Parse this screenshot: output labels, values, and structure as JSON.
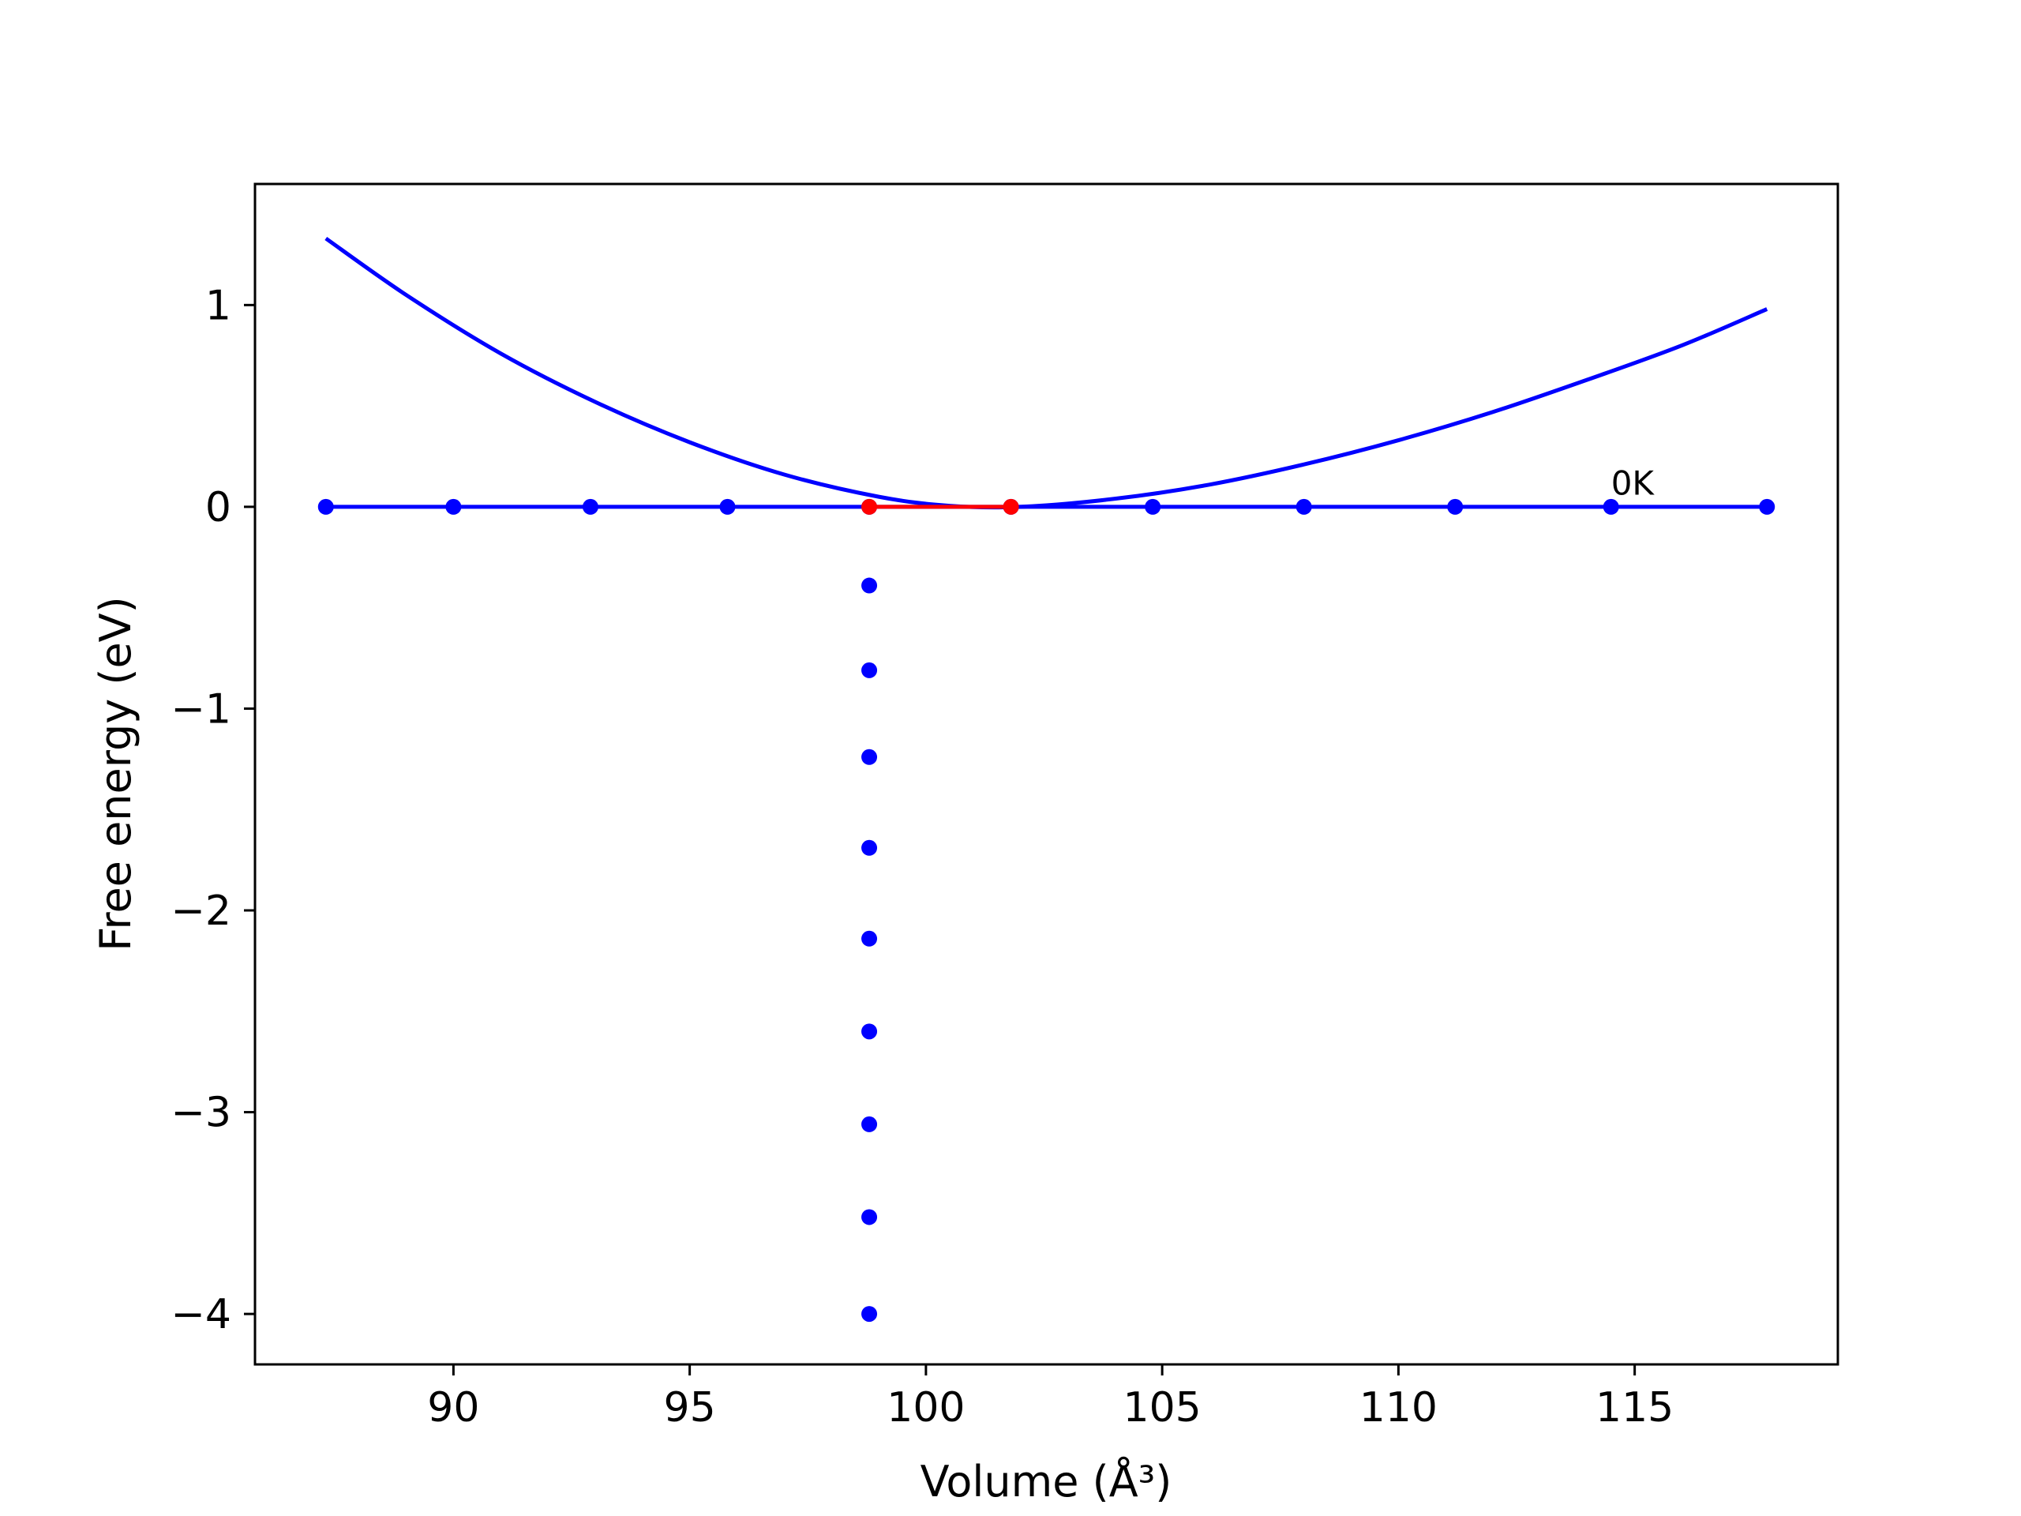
{
  "chart_data": {
    "type": "line",
    "title": "",
    "xlabel": "Volume (Å³)",
    "ylabel": "Free energy (eV)",
    "xlim": [
      85.8,
      119.3
    ],
    "ylim": [
      -4.25,
      1.6
    ],
    "grid": false,
    "legend": "none",
    "xticks": [
      90,
      95,
      100,
      105,
      110,
      115
    ],
    "xtick_labels": [
      "90",
      "95",
      "100",
      "105",
      "110",
      "115"
    ],
    "yticks": [
      1,
      0,
      -1,
      -2,
      -3,
      -4
    ],
    "ytick_labels": [
      "1",
      "0",
      "−1",
      "−2",
      "−3",
      "−4"
    ],
    "series": [
      {
        "kind": "curve",
        "color": "#0000ff",
        "x": [
          87.3,
          89.0,
          91.0,
          93.0,
          95.0,
          97.0,
          99.0,
          100.5,
          102.0,
          104.0,
          106.0,
          108.0,
          110.0,
          112.0,
          114.0,
          116.0,
          117.8
        ],
        "y": [
          1.33,
          1.05,
          0.76,
          0.52,
          0.32,
          0.16,
          0.05,
          0.005,
          0.0,
          0.04,
          0.11,
          0.21,
          0.33,
          0.47,
          0.63,
          0.8,
          0.98
        ]
      },
      {
        "kind": "line-markers",
        "color": "#0000ff",
        "x": [
          87.3,
          90.0,
          92.9,
          95.8,
          98.8,
          101.8,
          104.8,
          108.0,
          111.2,
          114.5,
          117.8
        ],
        "y": [
          0,
          0,
          0,
          0,
          0,
          0,
          0,
          0,
          0,
          0,
          0
        ]
      },
      {
        "kind": "line-markers",
        "color": "#ff0000",
        "x": [
          98.8,
          101.8
        ],
        "y": [
          0,
          0
        ]
      },
      {
        "kind": "markers",
        "color": "#0000ff",
        "x": [
          98.8,
          98.8,
          98.8,
          98.8,
          98.8,
          98.8,
          98.8,
          98.8,
          98.8
        ],
        "y": [
          -0.39,
          -0.81,
          -1.24,
          -1.69,
          -2.14,
          -2.6,
          -3.06,
          -3.52,
          -4.0
        ]
      }
    ],
    "annotations": [
      {
        "text": "0K",
        "x": 114.5,
        "y": 0.06
      }
    ]
  }
}
